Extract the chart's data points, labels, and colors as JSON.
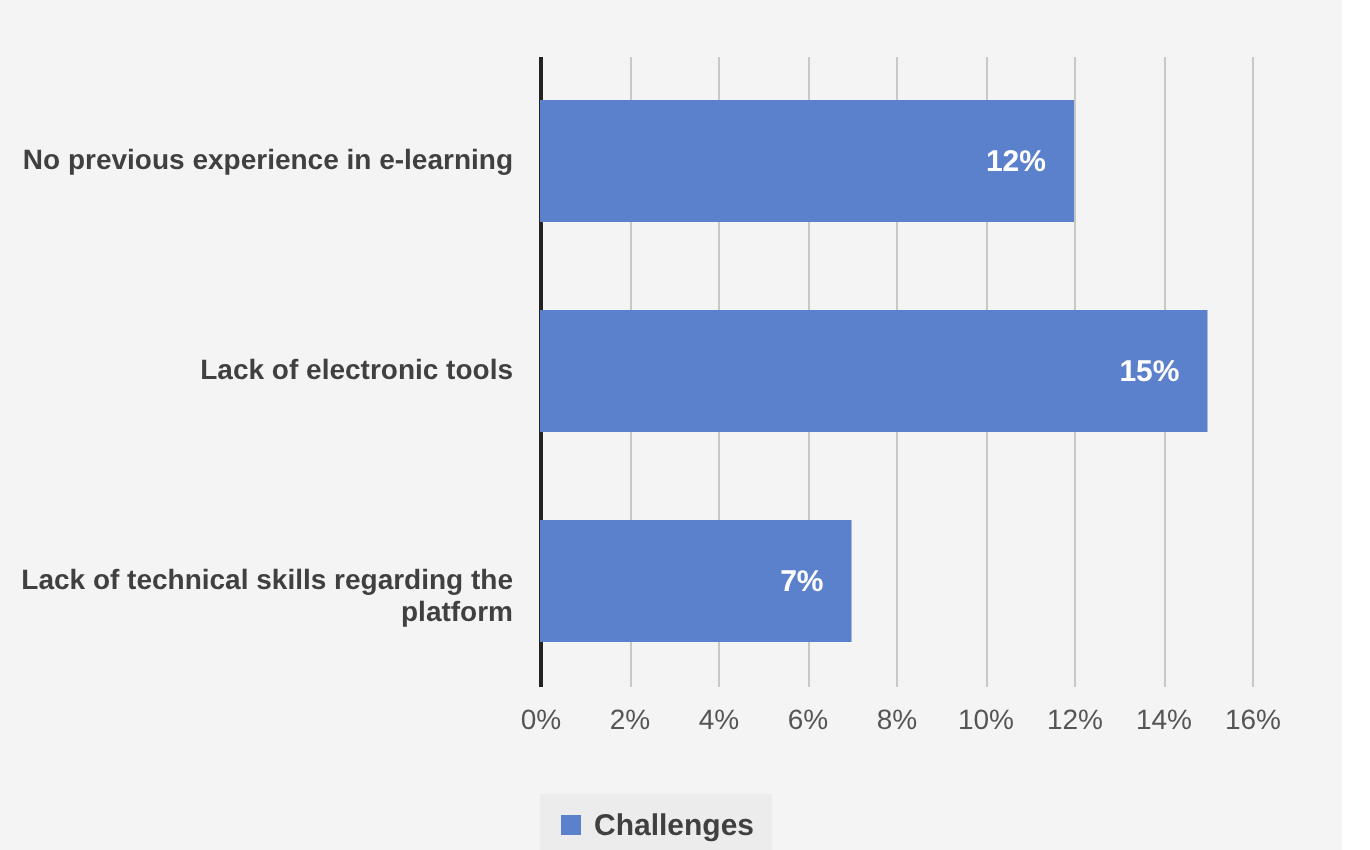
{
  "chart_data": {
    "type": "bar",
    "orientation": "horizontal",
    "categories": [
      "No previous experience in e-learning",
      "Lack of electronic tools",
      "Lack of technical skills regarding the platform"
    ],
    "series": [
      {
        "name": "Challenges",
        "color": "#5b80cc",
        "values": [
          12,
          15,
          7
        ]
      }
    ],
    "value_labels": [
      "12%",
      "15%",
      "7%"
    ],
    "xlim": [
      0,
      16
    ],
    "xticks": [
      {
        "value": 0,
        "label": "0%"
      },
      {
        "value": 2,
        "label": "2%"
      },
      {
        "value": 4,
        "label": "4%"
      },
      {
        "value": 6,
        "label": "6%"
      },
      {
        "value": 8,
        "label": "8%"
      },
      {
        "value": 10,
        "label": "10%"
      },
      {
        "value": 12,
        "label": "12%"
      },
      {
        "value": 14,
        "label": "14%"
      },
      {
        "value": 16,
        "label": "16%"
      }
    ],
    "grid": "x",
    "legend": "bottom"
  }
}
